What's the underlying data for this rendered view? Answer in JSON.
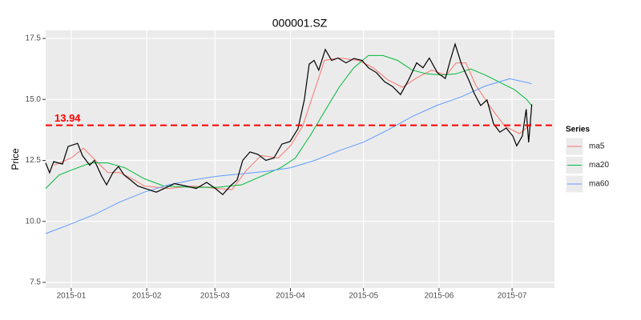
{
  "chart_data": {
    "type": "line",
    "title": "000001.SZ",
    "y_label": "Price",
    "legend_title": "Series",
    "legend_position": "right",
    "grid": true,
    "xlim": [
      -10.5,
      198.4
    ],
    "ylim": [
      7.27,
      17.83
    ],
    "xticks": [
      {
        "value": 0,
        "label": "2015-01"
      },
      {
        "value": 31,
        "label": "2015-02"
      },
      {
        "value": 59,
        "label": "2015-03"
      },
      {
        "value": 90,
        "label": "2015-04"
      },
      {
        "value": 120,
        "label": "2015-05"
      },
      {
        "value": 151,
        "label": "2015-06"
      },
      {
        "value": 181,
        "label": "2015-07"
      }
    ],
    "yticks": [
      {
        "value": 7.5,
        "label": "7.5"
      },
      {
        "value": 10,
        "label": "10.0"
      },
      {
        "value": 12.5,
        "label": "12.5"
      },
      {
        "value": 15,
        "label": "15.0"
      },
      {
        "value": 17.5,
        "label": "17.5"
      }
    ],
    "hline": {
      "value": 13.94,
      "label": "13.94",
      "color": "#ff0000"
    },
    "series": [
      {
        "color": "#000000",
        "x": [
          -10.5,
          -8.9,
          -7.2,
          -3.6,
          -1.3,
          2.6,
          4.6,
          7.6,
          9.5,
          12.5,
          14.5,
          17.1,
          19.4,
          21.7,
          24.3,
          27.3,
          30.3,
          34.9,
          38.2,
          42.4,
          47.0,
          51.3,
          55.6,
          58.9,
          62.2,
          65.5,
          68.1,
          70.4,
          73.4,
          76.6,
          79.9,
          83.2,
          86.5,
          89.8,
          93.1,
          95.7,
          97.7,
          99.7,
          101.6,
          104.3,
          106.9,
          109.5,
          112.8,
          116.1,
          119.4,
          122.0,
          125.3,
          128.6,
          131.9,
          135.2,
          138.5,
          141.8,
          144.4,
          147.0,
          150.3,
          153.6,
          155.6,
          157.6,
          160.2,
          163.2,
          165.5,
          168.1,
          170.7,
          173.4,
          176.0,
          178.6,
          181.3,
          182.9,
          185.2,
          186.8,
          187.8,
          189.1
        ],
        "values": [
          12.4,
          12.0,
          12.45,
          12.35,
          13.07,
          13.2,
          12.7,
          12.3,
          12.5,
          11.85,
          11.5,
          12.0,
          12.25,
          11.9,
          11.7,
          11.45,
          11.35,
          11.2,
          11.35,
          11.55,
          11.45,
          11.35,
          11.6,
          11.37,
          11.1,
          11.47,
          11.7,
          12.5,
          12.85,
          12.75,
          12.5,
          12.6,
          13.17,
          13.27,
          13.8,
          14.98,
          16.45,
          16.6,
          16.2,
          17.05,
          16.6,
          16.7,
          16.5,
          16.68,
          16.6,
          16.3,
          16.1,
          15.73,
          15.53,
          15.2,
          15.8,
          16.5,
          16.3,
          16.7,
          16.1,
          15.86,
          16.6,
          17.27,
          16.45,
          15.8,
          15.24,
          14.75,
          14.98,
          14.0,
          13.66,
          13.83,
          13.5,
          13.1,
          13.5,
          14.6,
          13.24,
          14.8
        ]
      },
      {
        "name": "ma5",
        "color": "#f8766d",
        "x": [
          -7,
          0,
          5,
          10,
          15,
          20,
          25,
          30,
          40,
          50,
          60,
          66,
          72,
          78,
          85,
          90,
          95,
          100,
          104,
          110,
          118,
          124,
          130,
          136,
          142,
          148,
          154,
          158,
          162,
          166,
          172,
          178,
          184,
          189
        ],
        "values": [
          12.3,
          12.6,
          13.0,
          12.5,
          12.0,
          12.0,
          11.75,
          11.45,
          11.35,
          11.45,
          11.35,
          11.3,
          12.1,
          12.7,
          12.6,
          13.1,
          13.9,
          15.4,
          16.6,
          16.7,
          16.6,
          16.3,
          15.8,
          15.5,
          15.9,
          16.2,
          16.0,
          16.5,
          16.5,
          15.6,
          14.7,
          13.9,
          13.6,
          14.0
        ]
      },
      {
        "name": "ma20",
        "color": "#00ba38",
        "x": [
          -10.5,
          -5,
          0,
          8,
          15,
          22,
          30,
          38,
          50,
          60,
          70,
          78,
          86,
          92,
          98,
          104,
          110,
          116,
          122,
          128,
          134,
          140,
          146,
          152,
          158,
          164,
          170,
          176,
          182,
          187,
          189
        ],
        "values": [
          11.35,
          11.9,
          12.1,
          12.4,
          12.4,
          12.2,
          11.75,
          11.45,
          11.4,
          11.4,
          11.5,
          11.85,
          12.2,
          12.6,
          13.5,
          14.5,
          15.5,
          16.3,
          16.8,
          16.8,
          16.6,
          16.2,
          16.05,
          16.0,
          16.05,
          16.25,
          16.0,
          15.7,
          15.4,
          15.0,
          14.75
        ]
      },
      {
        "name": "ma60",
        "color": "#619cff",
        "x": [
          -10.5,
          0,
          10,
          20,
          30,
          40,
          50,
          60,
          70,
          80,
          90,
          100,
          110,
          120,
          130,
          140,
          150,
          160,
          170,
          180,
          189
        ],
        "values": [
          9.5,
          9.9,
          10.3,
          10.8,
          11.2,
          11.5,
          11.7,
          11.85,
          11.95,
          12.05,
          12.2,
          12.5,
          12.9,
          13.25,
          13.75,
          14.3,
          14.75,
          15.1,
          15.55,
          15.85,
          15.65
        ]
      }
    ]
  }
}
